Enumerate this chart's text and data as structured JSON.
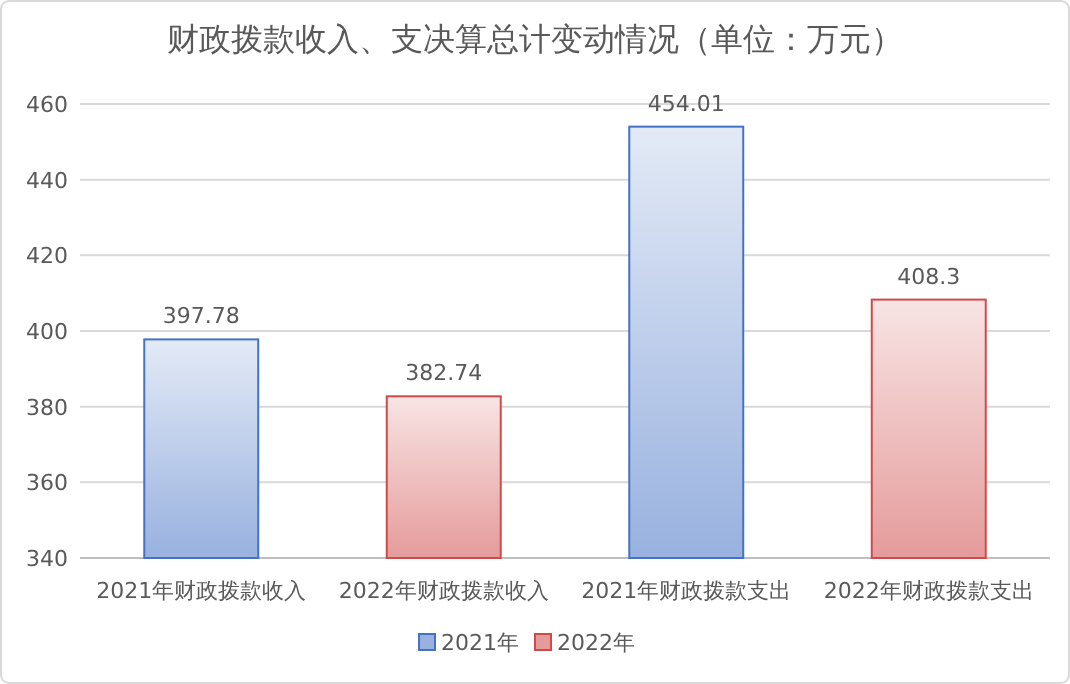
{
  "chart_data": {
    "type": "bar",
    "title": "财政拨款收入、支决算总计变动情况（单位：万元）",
    "categories": [
      "2021年财政拨款收入",
      "2022年财政拨款收入",
      "2021年财政拨款支出",
      "2022年财政拨款支出"
    ],
    "series": [
      {
        "name": "2021年",
        "color": "#4472c4",
        "values": [
          397.78,
          null,
          454.01,
          null
        ]
      },
      {
        "name": "2022年",
        "color": "#d04a4a",
        "values": [
          null,
          382.74,
          null,
          408.3
        ]
      }
    ],
    "ylim": [
      340,
      460
    ],
    "yticks": [
      340,
      360,
      380,
      400,
      420,
      440,
      460
    ],
    "grid": "y",
    "legend": "bottom",
    "data_labels": true
  }
}
